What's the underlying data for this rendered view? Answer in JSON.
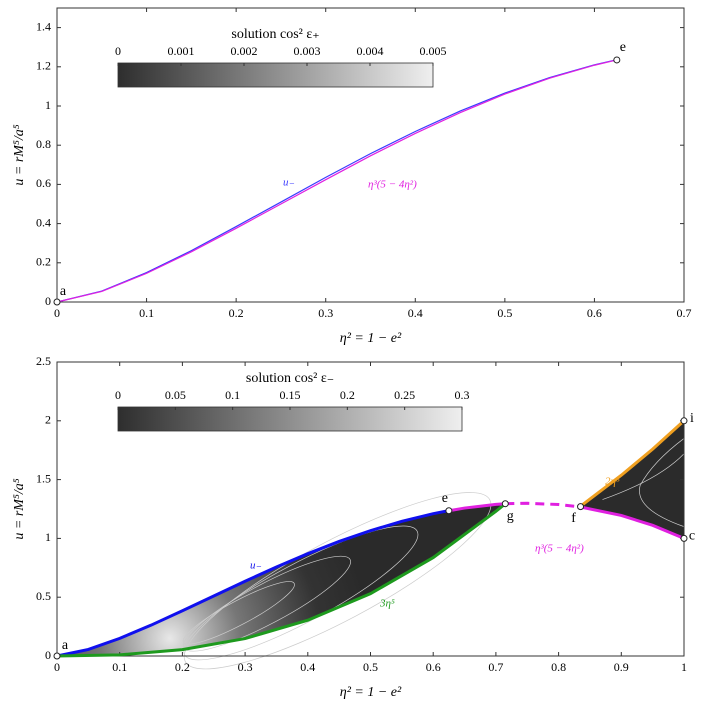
{
  "chart_data": [
    {
      "type": "line",
      "xlabel": "η² = 1 − e²",
      "ylabel": "u = rM⁵/a⁵",
      "xlim": [
        0,
        0.7
      ],
      "ylim": [
        0,
        1.5
      ],
      "xticks": [
        0,
        0.1,
        0.2,
        0.3,
        0.4,
        0.5,
        0.6,
        0.7
      ],
      "yticks": [
        0,
        0.2,
        0.4,
        0.6,
        0.8,
        1,
        1.2,
        1.4
      ],
      "colorbar": {
        "label": "solution cos² ε₊",
        "lim": [
          0,
          0.005
        ],
        "ticks": [
          0,
          0.001,
          0.002,
          0.003,
          0.004,
          0.005
        ]
      },
      "series": [
        {
          "name": "u₋",
          "color": "#3a3aff",
          "style": "solid",
          "x": [
            0,
            0.05,
            0.1,
            0.15,
            0.2,
            0.25,
            0.3,
            0.35,
            0.4,
            0.45,
            0.5,
            0.55,
            0.6,
            0.625
          ],
          "values": [
            0,
            0.056,
            0.15,
            0.262,
            0.385,
            0.51,
            0.636,
            0.757,
            0.87,
            0.974,
            1.066,
            1.145,
            1.21,
            1.236
          ]
        },
        {
          "name": "η³(5 − 4η²)",
          "color": "#e020e0",
          "style": "solid",
          "x": [
            0,
            0.05,
            0.1,
            0.15,
            0.2,
            0.25,
            0.3,
            0.35,
            0.4,
            0.45,
            0.5,
            0.55,
            0.6,
            0.625
          ],
          "values": [
            0,
            0.054,
            0.146,
            0.256,
            0.376,
            0.5,
            0.624,
            0.746,
            0.86,
            0.966,
            1.061,
            1.142,
            1.208,
            1.235
          ]
        }
      ],
      "points": [
        {
          "label": "a",
          "x": 0,
          "y": 0
        },
        {
          "label": "e",
          "x": 0.625,
          "y": 1.235
        }
      ]
    },
    {
      "type": "line",
      "xlabel": "η² = 1 − e²",
      "ylabel": "u = rM⁵/a⁵",
      "xlim": [
        0,
        1
      ],
      "ylim": [
        0,
        2.5
      ],
      "xticks": [
        0,
        0.1,
        0.2,
        0.3,
        0.4,
        0.5,
        0.6,
        0.7,
        0.8,
        0.9,
        1
      ],
      "yticks": [
        0,
        0.5,
        1,
        1.5,
        2,
        2.5
      ],
      "colorbar": {
        "label": "solution cos² ε₋",
        "lim": [
          0,
          0.3
        ],
        "ticks": [
          0,
          0.05,
          0.1,
          0.15,
          0.2,
          0.25,
          0.3
        ]
      },
      "series": [
        {
          "name": "u₋",
          "color": "#1010ee",
          "style": "solid",
          "x": [
            0,
            0.05,
            0.1,
            0.15,
            0.2,
            0.25,
            0.3,
            0.35,
            0.4,
            0.45,
            0.5,
            0.55,
            0.6,
            0.625
          ],
          "values": [
            0,
            0.056,
            0.15,
            0.262,
            0.385,
            0.51,
            0.636,
            0.757,
            0.87,
            0.974,
            1.066,
            1.145,
            1.21,
            1.236
          ]
        },
        {
          "name": "3η⁵",
          "color": "#1e9a1e",
          "style": "solid",
          "x": [
            0,
            0.1,
            0.2,
            0.3,
            0.4,
            0.5,
            0.6,
            0.7,
            0.715
          ],
          "values": [
            0,
            0.0095,
            0.054,
            0.148,
            0.304,
            0.53,
            0.837,
            1.23,
            1.295
          ]
        },
        {
          "name": "η³(5 − 4η²)",
          "color": "#e020e0",
          "style": "solid",
          "x": [
            0.625,
            0.65,
            0.7,
            0.715,
            0.775,
            0.835,
            0.9,
            0.95,
            1
          ],
          "values": [
            1.235,
            1.258,
            1.289,
            1.295,
            null,
            1.267,
            1.195,
            1.111,
            1
          ]
        },
        {
          "color": "#e020e0",
          "style": "dashed",
          "x": [
            0.715,
            0.75,
            0.8,
            0.835
          ],
          "values": [
            1.295,
            1.299,
            1.288,
            1.267
          ]
        },
        {
          "name": "2η⁵",
          "color": "#f0a020",
          "style": "solid",
          "x": [
            0.835,
            0.9,
            0.95,
            1
          ],
          "values": [
            1.274,
            1.537,
            1.759,
            2
          ]
        }
      ],
      "points": [
        {
          "label": "a",
          "x": 0,
          "y": 0
        },
        {
          "label": "e",
          "x": 0.625,
          "y": 1.235
        },
        {
          "label": "g",
          "x": 0.715,
          "y": 1.295
        },
        {
          "label": "f",
          "x": 0.835,
          "y": 1.27
        },
        {
          "label": "i",
          "x": 1,
          "y": 2
        },
        {
          "label": "c",
          "x": 1,
          "y": 1
        }
      ]
    }
  ]
}
